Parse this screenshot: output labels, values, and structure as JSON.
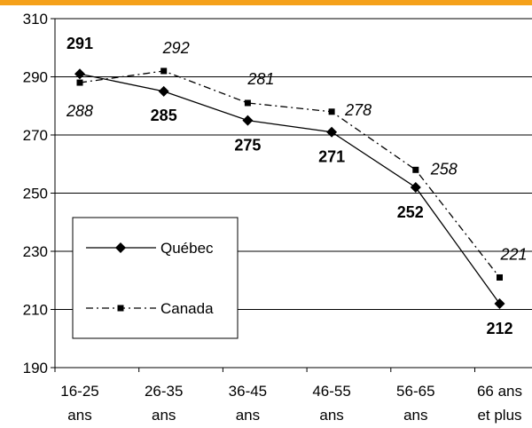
{
  "colors": {
    "accent_band": "#F5A11A",
    "axis": "#000000",
    "grid": "#000000",
    "quebec": "#000000",
    "canada": "#000000"
  },
  "chart_data": {
    "type": "line",
    "title": "",
    "xlabel": "",
    "ylabel": "",
    "categories": [
      [
        "16-25",
        "ans"
      ],
      [
        "26-35",
        "ans"
      ],
      [
        "36-45",
        "ans"
      ],
      [
        "46-55",
        "ans"
      ],
      [
        "56-65",
        "ans"
      ],
      [
        "66 ans",
        "et plus"
      ]
    ],
    "ylim": [
      190,
      310
    ],
    "yticks": [
      190,
      210,
      230,
      250,
      270,
      290,
      310
    ],
    "grid": true,
    "legend_position": "left",
    "series": [
      {
        "name": "Québec",
        "values": [
          291,
          285,
          275,
          271,
          252,
          212
        ],
        "line_style": "solid",
        "marker": "diamond",
        "label_style": "bold"
      },
      {
        "name": "Canada",
        "values": [
          288,
          292,
          281,
          278,
          258,
          221
        ],
        "line_style": "dash-dot",
        "marker": "square",
        "label_style": "italic"
      }
    ]
  }
}
